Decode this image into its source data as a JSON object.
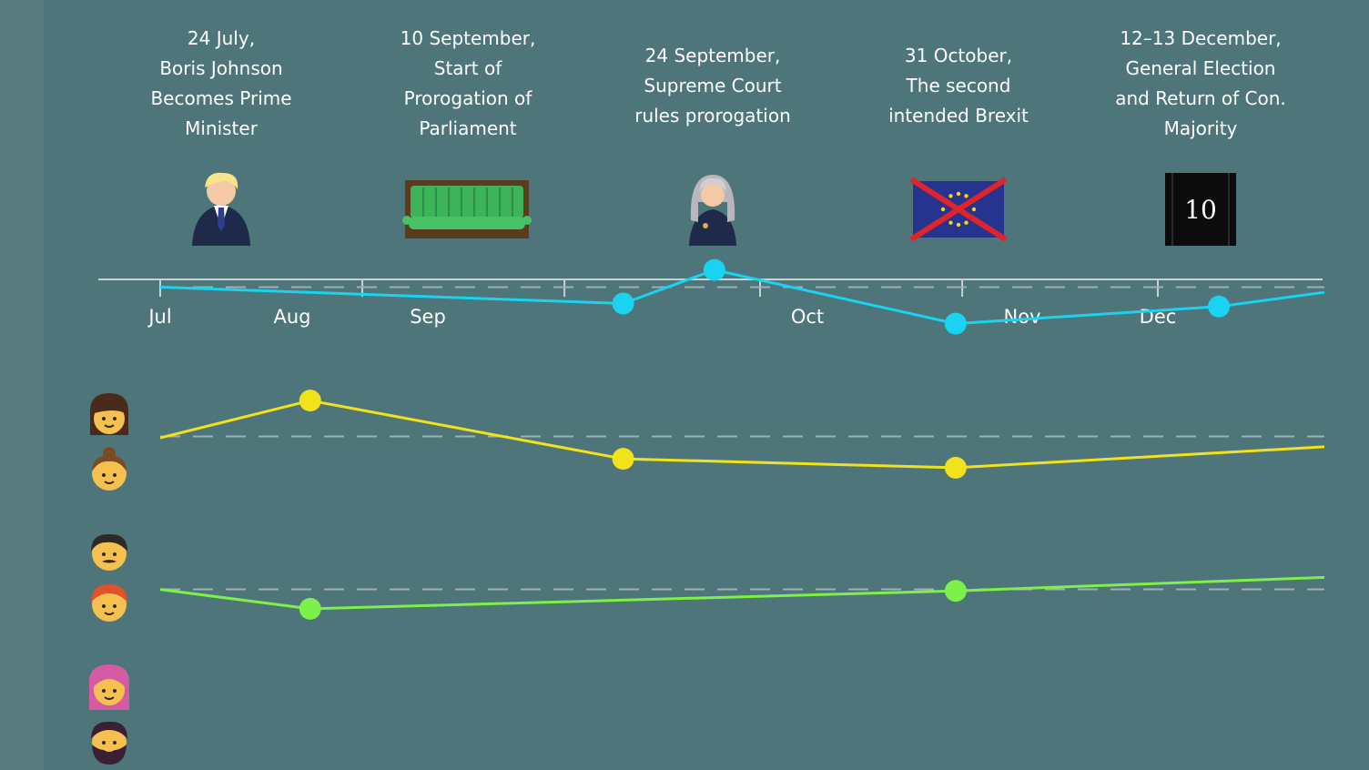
{
  "events": [
    {
      "lines": [
        "24 July,",
        "Boris Johnson",
        "Becomes Prime",
        "Minister"
      ],
      "icon": "boris-johnson-icon"
    },
    {
      "lines": [
        "10 September,",
        "Start of",
        "Prorogation of",
        "Parliament"
      ],
      "icon": "parliament-bench-icon"
    },
    {
      "lines": [
        "24 September,",
        "Supreme Court",
        "rules prorogation"
      ],
      "icon": "judge-icon"
    },
    {
      "lines": [
        "31 October,",
        "The second",
        "intended Brexit"
      ],
      "icon": "crossed-eu-flag-icon"
    },
    {
      "lines": [
        "12–13 December,",
        "General Election",
        "and Return of Con.",
        "Majority"
      ],
      "icon": "number-10-door-icon",
      "door_text": "10"
    }
  ],
  "axis_months": [
    "Jul",
    "Aug",
    "Sep",
    "Oct",
    "Nov",
    "Dec"
  ],
  "chart_data": {
    "type": "line",
    "x_axis": {
      "type": "date",
      "ticks": [
        "2019-07-01",
        "2019-08-01",
        "2019-09-01",
        "2019-10-01",
        "2019-11-01",
        "2019-12-01"
      ],
      "range": [
        "2019-07-01",
        "2019-12-31"
      ]
    },
    "y_range": [
      0,
      8
    ],
    "grid": "dashed reference line per group",
    "series": [
      {
        "color": "#19d3f0",
        "baseline": 6.47,
        "points": [
          [
            "2019-07-01",
            6.47
          ],
          [
            "2019-09-10",
            6.25
          ],
          [
            "2019-09-24",
            6.7
          ],
          [
            "2019-10-31",
            5.98
          ],
          [
            "2019-12-12",
            6.21
          ],
          [
            "2019-12-31",
            6.4
          ]
        ],
        "markers": [
          "2019-09-10",
          "2019-09-24",
          "2019-10-31",
          "2019-12-12"
        ]
      },
      {
        "color": "#f1e21b",
        "baseline": 4.47,
        "points": [
          [
            "2019-07-01",
            4.45
          ],
          [
            "2019-07-24",
            4.95
          ],
          [
            "2019-09-10",
            4.17
          ],
          [
            "2019-10-31",
            4.05
          ],
          [
            "2019-12-31",
            4.33
          ]
        ],
        "markers": [
          "2019-07-24",
          "2019-09-10",
          "2019-10-31"
        ]
      },
      {
        "color": "#7ef04a",
        "baseline": 2.42,
        "points": [
          [
            "2019-07-01",
            2.42
          ],
          [
            "2019-07-24",
            2.16
          ],
          [
            "2019-10-31",
            2.4
          ],
          [
            "2019-12-31",
            2.58
          ]
        ],
        "markers": [
          "2019-07-24",
          "2019-10-31"
        ]
      }
    ],
    "row_icons": [
      "woman-brown-hair-icon",
      "woman-bun-icon",
      "man-mustache-icon",
      "man-red-hair-icon",
      "woman-pink-hair-icon",
      "man-beard-icon"
    ],
    "colors": {
      "background": "#4e7579",
      "axis": "#c6d2d3",
      "baseline": "#9fb0b2"
    }
  }
}
